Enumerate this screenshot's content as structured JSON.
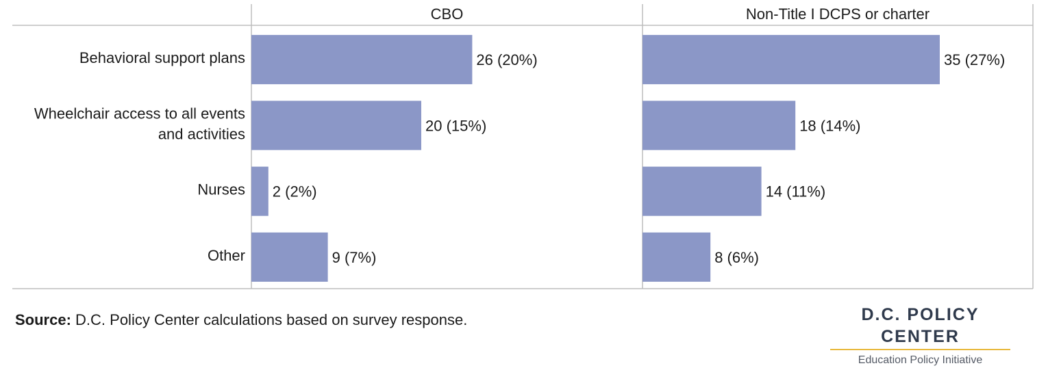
{
  "chart_data": {
    "type": "bar",
    "orientation": "horizontal",
    "categories": [
      [
        "Behavioral support plans"
      ],
      [
        "Wheelchair access to all events",
        "and activities"
      ],
      [
        "Nurses"
      ],
      [
        "Other"
      ]
    ],
    "panels": [
      {
        "title": "CBO",
        "values": [
          26,
          20,
          2,
          9
        ],
        "labels": [
          "26 (20%)",
          "20 (15%)",
          "2 (2%)",
          "9 (7%)"
        ]
      },
      {
        "title": "Non-Title I DCPS or charter",
        "values": [
          35,
          18,
          14,
          8
        ],
        "labels": [
          "35 (27%)",
          "18 (14%)",
          "14 (11%)",
          "8 (6%)"
        ]
      }
    ],
    "xlim": [
      0,
      46
    ],
    "bar_color": "#8b97c7",
    "grid": false
  },
  "source": {
    "label": "Source:",
    "text": " D.C. Policy Center calculations based on survey response."
  },
  "brand": {
    "name": "D.C. POLICY CENTER",
    "subtitle": "Education Policy Initiative",
    "accent": "#e8b93c"
  }
}
